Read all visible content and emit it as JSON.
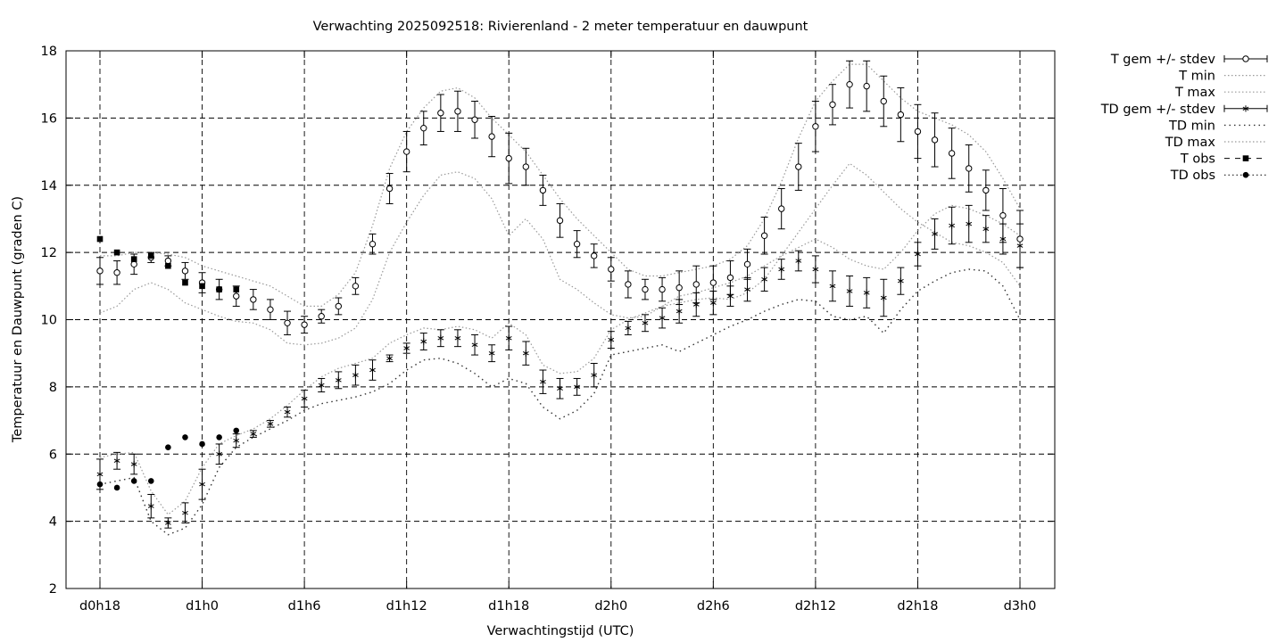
{
  "chart_data": {
    "type": "line",
    "title": "Verwachting 2025092518: Rivierenland - 2 meter temperatuur en dauwpunt",
    "xlabel": "Verwachtingstijd (UTC)",
    "ylabel": "Temperatuur en Dauwpunt (graden C)",
    "xlim": [
      -1,
      57
    ],
    "ylim": [
      2,
      18
    ],
    "x_ticks": [
      0,
      6,
      12,
      18,
      24,
      30,
      36,
      42,
      48,
      54
    ],
    "x_tick_labels": [
      "d0h18",
      "d1h0",
      "d1h6",
      "d1h12",
      "d1h18",
      "d2h0",
      "d2h6",
      "d2h12",
      "d2h18",
      "d3h0"
    ],
    "y_ticks": [
      2,
      4,
      6,
      8,
      10,
      12,
      14,
      16,
      18
    ],
    "y_tick_labels": [
      "2",
      "4",
      "6",
      "8",
      "10",
      "12",
      "14",
      "16",
      "18"
    ],
    "grid": true,
    "legend_position": "outside-top-right",
    "x": [
      0,
      1,
      2,
      3,
      4,
      5,
      6,
      7,
      8,
      9,
      10,
      11,
      12,
      13,
      14,
      15,
      16,
      17,
      18,
      19,
      20,
      21,
      22,
      23,
      24,
      25,
      26,
      27,
      28,
      29,
      30,
      31,
      32,
      33,
      34,
      35,
      36,
      37,
      38,
      39,
      40,
      41,
      42,
      43,
      44,
      45,
      46,
      47,
      48,
      49,
      50,
      51,
      52,
      53,
      54
    ],
    "series": [
      {
        "name": "T gem +/- stdev",
        "style": "errorbars-open-circle",
        "mean": [
          11.45,
          11.4,
          11.65,
          11.85,
          11.75,
          11.45,
          11.1,
          10.9,
          10.7,
          10.6,
          10.3,
          9.9,
          9.85,
          10.1,
          10.4,
          11.0,
          12.25,
          13.9,
          15.0,
          15.7,
          16.15,
          16.2,
          15.95,
          15.45,
          14.8,
          14.55,
          13.85,
          12.95,
          12.25,
          11.9,
          11.5,
          11.05,
          10.9,
          10.9,
          10.95,
          11.05,
          11.1,
          11.25,
          11.65,
          12.5,
          13.3,
          14.55,
          15.75,
          16.4,
          17.0,
          16.95,
          16.5,
          16.1,
          15.6,
          15.35,
          14.95,
          14.5,
          13.85,
          13.1,
          12.4
        ],
        "stdev": [
          0.4,
          0.35,
          0.3,
          0.15,
          0.15,
          0.25,
          0.3,
          0.3,
          0.3,
          0.3,
          0.3,
          0.35,
          0.25,
          0.2,
          0.25,
          0.25,
          0.3,
          0.45,
          0.6,
          0.5,
          0.55,
          0.6,
          0.55,
          0.6,
          0.75,
          0.55,
          0.45,
          0.5,
          0.4,
          0.35,
          0.35,
          0.4,
          0.3,
          0.35,
          0.5,
          0.55,
          0.5,
          0.5,
          0.45,
          0.55,
          0.6,
          0.7,
          0.75,
          0.6,
          0.7,
          0.75,
          0.75,
          0.8,
          0.8,
          0.8,
          0.75,
          0.7,
          0.6,
          0.8,
          0.85
        ]
      },
      {
        "name": "T min",
        "style": "dotted",
        "values": [
          10.2,
          10.4,
          10.9,
          11.1,
          10.9,
          10.5,
          10.3,
          10.1,
          9.95,
          9.9,
          9.7,
          9.3,
          9.25,
          9.3,
          9.45,
          9.75,
          10.6,
          12.0,
          12.9,
          13.7,
          14.3,
          14.4,
          14.2,
          13.6,
          12.5,
          13.0,
          12.4,
          11.2,
          10.9,
          10.5,
          10.15,
          10.05,
          10.1,
          10.4,
          10.5,
          10.6,
          10.65,
          10.6,
          10.8,
          11.2,
          11.9,
          12.6,
          13.3,
          14.0,
          14.65,
          14.3,
          13.8,
          13.3,
          12.9,
          12.6,
          12.3,
          12.2,
          12.0,
          11.7,
          11.0
        ]
      },
      {
        "name": "T max",
        "style": "dotted",
        "values": [
          11.9,
          11.9,
          12.0,
          12.0,
          11.95,
          11.85,
          11.6,
          11.45,
          11.3,
          11.15,
          11.0,
          10.7,
          10.4,
          10.4,
          10.75,
          11.4,
          12.8,
          14.5,
          15.6,
          16.3,
          16.8,
          16.9,
          16.6,
          16.0,
          15.5,
          15.0,
          14.3,
          13.6,
          13.0,
          12.5,
          12.0,
          11.5,
          11.3,
          11.3,
          11.4,
          11.5,
          11.6,
          11.8,
          12.2,
          13.0,
          14.1,
          15.4,
          16.5,
          17.1,
          17.6,
          17.6,
          17.1,
          16.6,
          16.2,
          16.0,
          15.8,
          15.5,
          15.0,
          14.2,
          13.3
        ]
      },
      {
        "name": "TD gem +/- stdev",
        "style": "errorbars-asterisk",
        "mean": [
          5.4,
          5.8,
          5.7,
          4.45,
          3.95,
          4.25,
          5.1,
          6.0,
          6.4,
          6.6,
          6.9,
          7.25,
          7.65,
          8.05,
          8.2,
          8.35,
          8.5,
          8.85,
          9.15,
          9.35,
          9.45,
          9.45,
          9.25,
          9.0,
          9.45,
          9.0,
          8.15,
          7.95,
          8.0,
          8.35,
          9.4,
          9.75,
          9.9,
          10.05,
          10.25,
          10.45,
          10.5,
          10.7,
          10.9,
          11.2,
          11.5,
          11.75,
          11.5,
          11.0,
          10.85,
          10.8,
          10.65,
          11.15,
          11.95,
          12.55,
          12.8,
          12.85,
          12.7,
          12.4,
          12.2
        ],
        "stdev": [
          0.45,
          0.25,
          0.3,
          0.35,
          0.15,
          0.3,
          0.45,
          0.3,
          0.2,
          0.1,
          0.1,
          0.15,
          0.25,
          0.2,
          0.25,
          0.3,
          0.3,
          0.1,
          0.15,
          0.25,
          0.25,
          0.25,
          0.3,
          0.25,
          0.35,
          0.35,
          0.35,
          0.3,
          0.25,
          0.35,
          0.25,
          0.2,
          0.25,
          0.3,
          0.35,
          0.35,
          0.35,
          0.3,
          0.35,
          0.35,
          0.3,
          0.3,
          0.4,
          0.45,
          0.45,
          0.45,
          0.55,
          0.4,
          0.35,
          0.45,
          0.55,
          0.55,
          0.4,
          0.45,
          0.65
        ]
      },
      {
        "name": "TD min",
        "style": "dotted",
        "values": [
          5.1,
          5.2,
          5.3,
          4.0,
          3.6,
          3.8,
          4.5,
          5.6,
          6.2,
          6.5,
          6.75,
          7.0,
          7.3,
          7.5,
          7.6,
          7.7,
          7.85,
          8.1,
          8.5,
          8.8,
          8.85,
          8.7,
          8.4,
          8.0,
          8.25,
          8.1,
          7.4,
          7.05,
          7.3,
          7.8,
          8.95,
          9.05,
          9.15,
          9.25,
          9.05,
          9.3,
          9.55,
          9.8,
          10.0,
          10.25,
          10.45,
          10.6,
          10.55,
          10.1,
          10.0,
          10.1,
          9.6,
          10.3,
          10.85,
          11.15,
          11.4,
          11.5,
          11.45,
          11.0,
          10.0
        ]
      },
      {
        "name": "TD max",
        "style": "dotted",
        "values": [
          5.9,
          6.0,
          6.05,
          4.9,
          4.2,
          4.6,
          5.6,
          6.3,
          6.55,
          6.75,
          7.05,
          7.45,
          7.9,
          8.3,
          8.55,
          8.7,
          8.85,
          9.3,
          9.55,
          9.75,
          9.7,
          9.8,
          9.7,
          9.45,
          9.9,
          9.55,
          8.65,
          8.4,
          8.45,
          8.85,
          9.7,
          10.0,
          10.2,
          10.4,
          10.7,
          10.8,
          10.95,
          11.1,
          11.3,
          11.6,
          11.9,
          12.15,
          12.4,
          12.15,
          11.8,
          11.6,
          11.5,
          12.0,
          12.65,
          13.15,
          13.4,
          13.3,
          13.1,
          12.85,
          12.5
        ]
      },
      {
        "name": "T obs",
        "style": "filled-square",
        "x": [
          0,
          1,
          2,
          3,
          4,
          5,
          6,
          7,
          8
        ],
        "values": [
          12.4,
          12.0,
          11.8,
          11.9,
          11.6,
          11.1,
          11.0,
          10.9,
          10.9
        ]
      },
      {
        "name": "TD obs",
        "style": "filled-circle",
        "x": [
          0,
          1,
          2,
          3,
          4,
          5,
          6,
          7,
          8
        ],
        "values": [
          5.1,
          5.0,
          5.2,
          5.2,
          6.2,
          6.5,
          6.3,
          6.5,
          6.7
        ]
      }
    ]
  }
}
